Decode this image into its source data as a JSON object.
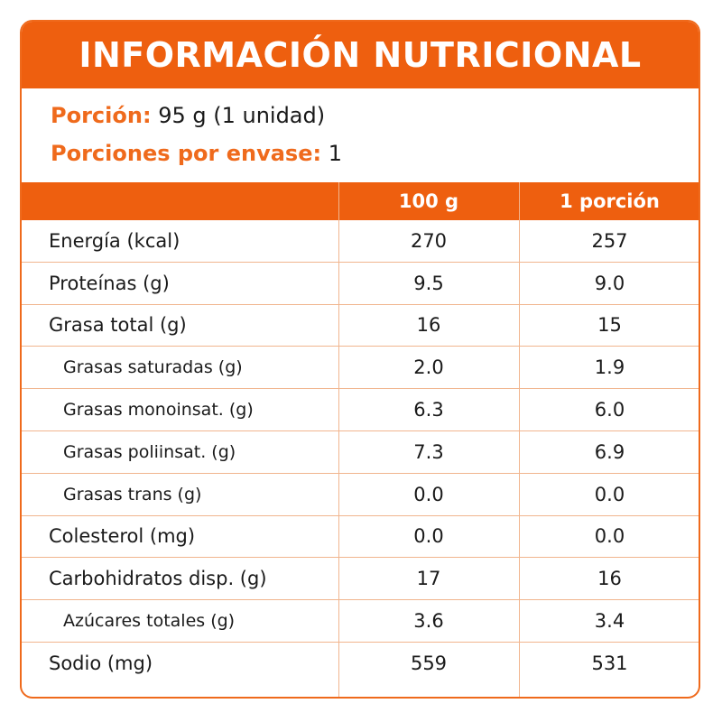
{
  "title": "INFORMACIÓN NUTRICIONAL",
  "serving": {
    "portion_label": "Porción:",
    "portion_value": "95 g (1 unidad)",
    "servings_label": "Porciones por envase:",
    "servings_value": "1"
  },
  "table": {
    "headers": [
      "",
      "100 g",
      "1 porción"
    ],
    "rows": [
      {
        "name": "Energía (kcal)",
        "per100": "270",
        "perPortion": "257",
        "indent": false
      },
      {
        "name": "Proteínas (g)",
        "per100": "9.5",
        "perPortion": "9.0",
        "indent": false
      },
      {
        "name": "Grasa total (g)",
        "per100": "16",
        "perPortion": "15",
        "indent": false
      },
      {
        "name": "Grasas saturadas (g)",
        "per100": "2.0",
        "perPortion": "1.9",
        "indent": true
      },
      {
        "name": "Grasas monoinsat. (g)",
        "per100": "6.3",
        "perPortion": "6.0",
        "indent": true
      },
      {
        "name": "Grasas poliinsat. (g)",
        "per100": "7.3",
        "perPortion": "6.9",
        "indent": true
      },
      {
        "name": "Grasas trans (g)",
        "per100": "0.0",
        "perPortion": "0.0",
        "indent": true
      },
      {
        "name": "Colesterol (mg)",
        "per100": "0.0",
        "perPortion": "0.0",
        "indent": false
      },
      {
        "name": "Carbohidratos disp. (g)",
        "per100": "17",
        "perPortion": "16",
        "indent": false
      },
      {
        "name": "Azúcares totales (g)",
        "per100": "3.6",
        "perPortion": "3.4",
        "indent": true
      },
      {
        "name": "Sodio (mg)",
        "per100": "559",
        "perPortion": "531",
        "indent": false
      }
    ]
  },
  "colors": {
    "accent": "#ee5f0f",
    "border": "#ef6a1c",
    "grid": "#f1b58e"
  }
}
